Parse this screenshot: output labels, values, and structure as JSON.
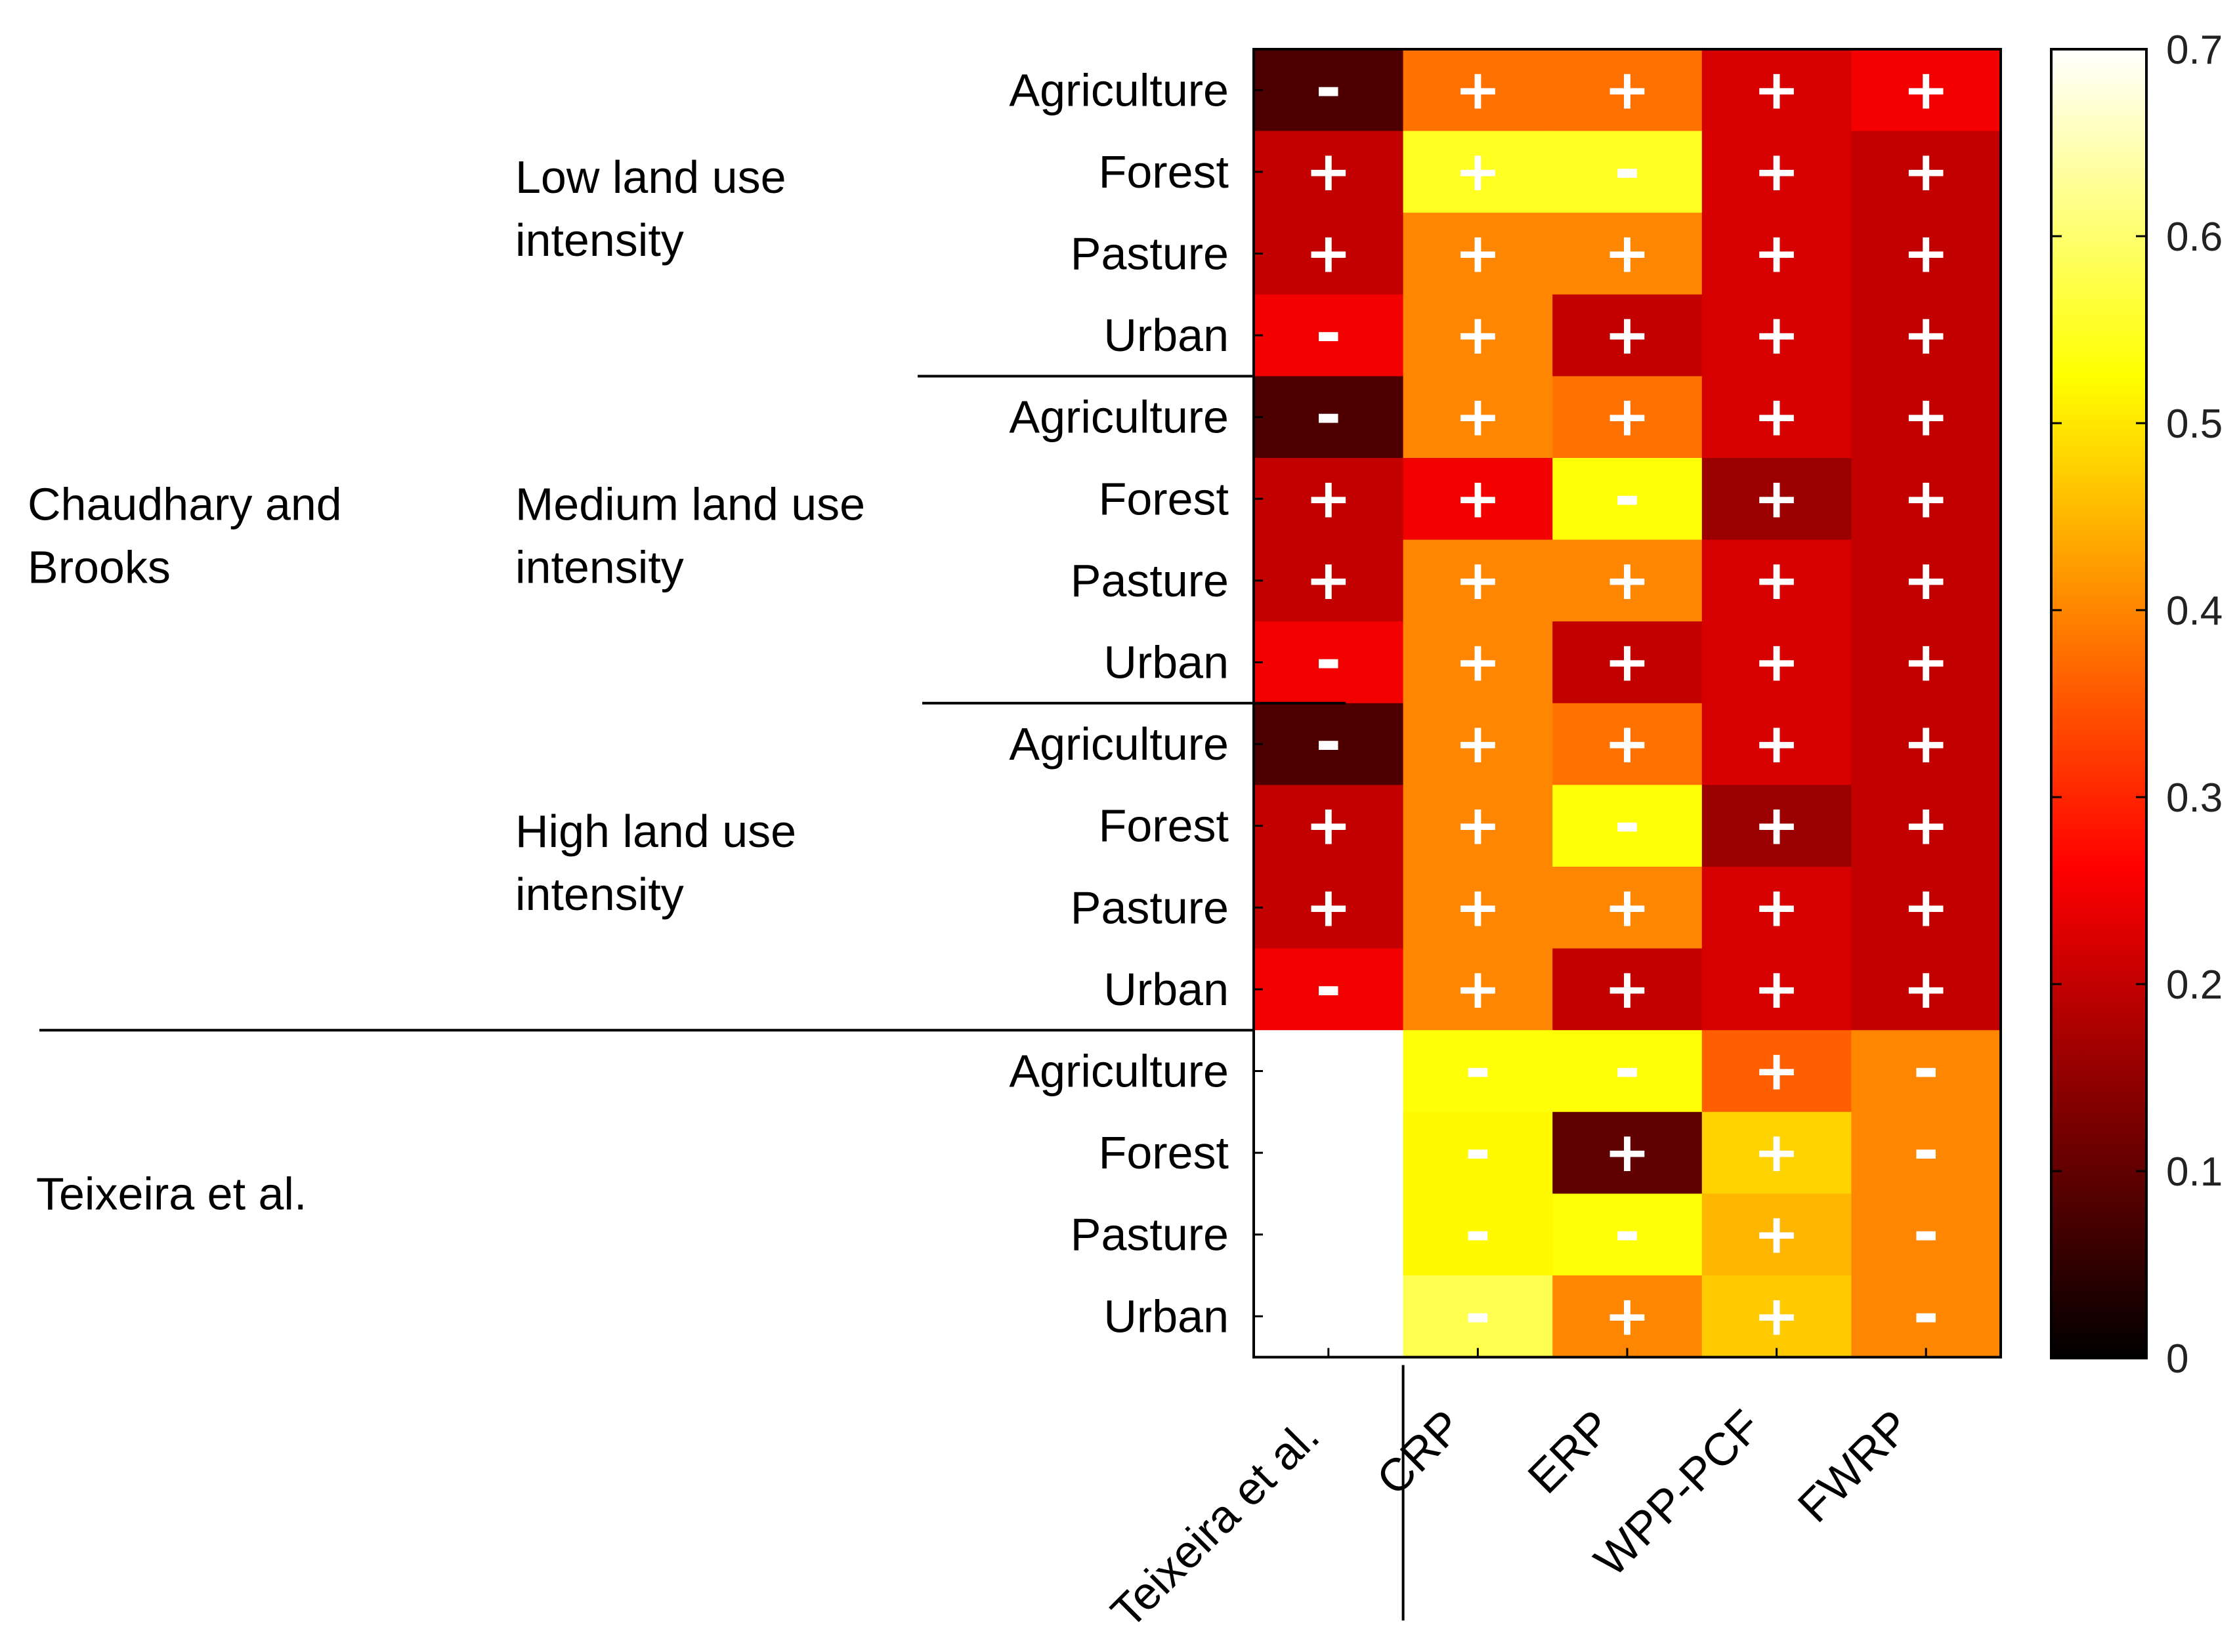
{
  "chart_data": {
    "type": "heatmap",
    "title": "",
    "columns": [
      "Teixeira et al.",
      "CRP",
      "ERP",
      "WPP-PCF",
      "FWRP"
    ],
    "groups": [
      {
        "name": "Chaudhary and Brooks",
        "subgroups": [
          "Low land use intensity",
          "Medium land use intensity",
          "High land use intensity"
        ]
      },
      {
        "name": "Teixeira et al.",
        "subgroups": [
          ""
        ]
      }
    ],
    "rows": [
      {
        "group": "Chaudhary and Brooks",
        "subgroup": "Low land use intensity",
        "label": "Agriculture",
        "values": [
          0.08,
          0.38,
          0.38,
          0.22,
          0.25
        ],
        "signs": [
          "-",
          "+",
          "+",
          "+",
          "+"
        ]
      },
      {
        "group": "Chaudhary and Brooks",
        "subgroup": "Low land use intensity",
        "label": "Forest",
        "values": [
          0.2,
          0.55,
          0.55,
          0.22,
          0.2
        ],
        "signs": [
          "+",
          "+",
          "-",
          "+",
          "+"
        ]
      },
      {
        "group": "Chaudhary and Brooks",
        "subgroup": "Low land use intensity",
        "label": "Pasture",
        "values": [
          0.2,
          0.4,
          0.4,
          0.22,
          0.2
        ],
        "signs": [
          "+",
          "+",
          "+",
          "+",
          "+"
        ]
      },
      {
        "group": "Chaudhary and Brooks",
        "subgroup": "Low land use intensity",
        "label": "Urban",
        "values": [
          0.25,
          0.4,
          0.2,
          0.22,
          0.2
        ],
        "signs": [
          "-",
          "+",
          "+",
          "+",
          "+"
        ]
      },
      {
        "group": "Chaudhary and Brooks",
        "subgroup": "Medium land use intensity",
        "label": "Agriculture",
        "values": [
          0.08,
          0.4,
          0.38,
          0.22,
          0.2
        ],
        "signs": [
          "-",
          "+",
          "+",
          "+",
          "+"
        ]
      },
      {
        "group": "Chaudhary and Brooks",
        "subgroup": "Medium land use intensity",
        "label": "Forest",
        "values": [
          0.2,
          0.25,
          0.53,
          0.16,
          0.2
        ],
        "signs": [
          "+",
          "+",
          "-",
          "+",
          "+"
        ]
      },
      {
        "group": "Chaudhary and Brooks",
        "subgroup": "Medium land use intensity",
        "label": "Pasture",
        "values": [
          0.2,
          0.4,
          0.4,
          0.22,
          0.2
        ],
        "signs": [
          "+",
          "+",
          "+",
          "+",
          "+"
        ]
      },
      {
        "group": "Chaudhary and Brooks",
        "subgroup": "Medium land use intensity",
        "label": "Urban",
        "values": [
          0.25,
          0.4,
          0.2,
          0.22,
          0.2
        ],
        "signs": [
          "-",
          "+",
          "+",
          "+",
          "+"
        ]
      },
      {
        "group": "Chaudhary and Brooks",
        "subgroup": "High land use intensity",
        "label": "Agriculture",
        "values": [
          0.08,
          0.4,
          0.38,
          0.22,
          0.2
        ],
        "signs": [
          "-",
          "+",
          "+",
          "+",
          "+"
        ]
      },
      {
        "group": "Chaudhary and Brooks",
        "subgroup": "High land use intensity",
        "label": "Forest",
        "values": [
          0.2,
          0.4,
          0.53,
          0.16,
          0.2
        ],
        "signs": [
          "+",
          "+",
          "-",
          "+",
          "+"
        ]
      },
      {
        "group": "Chaudhary and Brooks",
        "subgroup": "High land use intensity",
        "label": "Pasture",
        "values": [
          0.2,
          0.4,
          0.4,
          0.22,
          0.2
        ],
        "signs": [
          "+",
          "+",
          "+",
          "+",
          "+"
        ]
      },
      {
        "group": "Chaudhary and Brooks",
        "subgroup": "High land use intensity",
        "label": "Urban",
        "values": [
          0.25,
          0.4,
          0.2,
          0.22,
          0.2
        ],
        "signs": [
          "-",
          "+",
          "+",
          "+",
          "+"
        ]
      },
      {
        "group": "Teixeira et al.",
        "subgroup": "",
        "label": "Agriculture",
        "values": [
          0.7,
          0.53,
          0.53,
          0.36,
          0.4
        ],
        "signs": [
          "",
          "-",
          "-",
          "+",
          "-"
        ]
      },
      {
        "group": "Teixeira et al.",
        "subgroup": "",
        "label": "Forest",
        "values": [
          0.7,
          0.52,
          0.1,
          0.48,
          0.4
        ],
        "signs": [
          "",
          "-",
          "+",
          "+",
          "-"
        ]
      },
      {
        "group": "Teixeira et al.",
        "subgroup": "",
        "label": "Pasture",
        "values": [
          0.7,
          0.52,
          0.53,
          0.45,
          0.4
        ],
        "signs": [
          "",
          "-",
          "-",
          "+",
          "-"
        ]
      },
      {
        "group": "Teixeira et al.",
        "subgroup": "",
        "label": "Urban",
        "values": [
          0.7,
          0.58,
          0.4,
          0.47,
          0.4
        ],
        "signs": [
          "",
          "-",
          "+",
          "+",
          "-"
        ]
      }
    ],
    "colorbar": {
      "colormap": "hot",
      "range": [
        0,
        0.7
      ],
      "ticks": [
        "0",
        "0.1",
        "0.2",
        "0.3",
        "0.4",
        "0.5",
        "0.6",
        "0.7"
      ]
    }
  }
}
